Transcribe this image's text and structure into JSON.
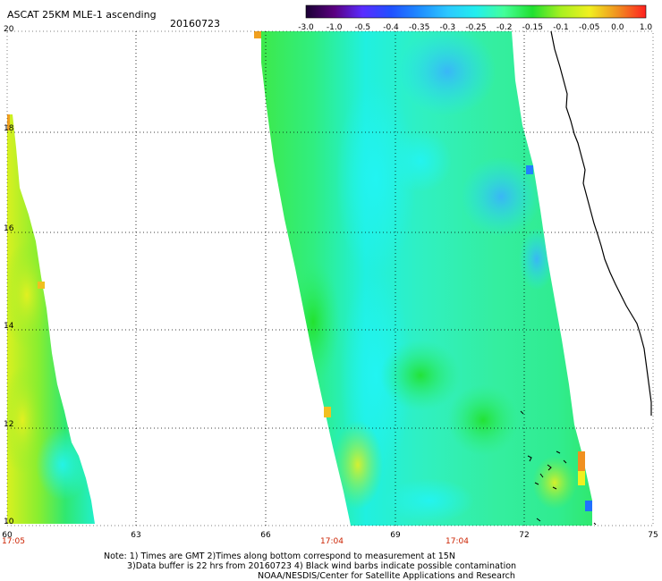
{
  "header": {
    "title": "ASCAT 25KM MLE-1 ascending",
    "date": "20160723"
  },
  "colorbar": {
    "labels": [
      "-3.0",
      "-1.0",
      "-0.5",
      "-0.4",
      "-0.35",
      "-0.3",
      "-0.25",
      "-0.2",
      "-0.15",
      "-0.1",
      "-0.05",
      "0.0",
      "1.0"
    ],
    "colors": [
      "#1a0033",
      "#5a0080",
      "#5a2cff",
      "#2050ff",
      "#1e8cff",
      "#2cc8ff",
      "#22eeee",
      "#44ff99",
      "#20e030",
      "#a8f020",
      "#f0f020",
      "#f09020",
      "#ff2020"
    ]
  },
  "axes": {
    "lat_labels": [
      "20",
      "18",
      "16",
      "14",
      "12",
      "10"
    ],
    "lon_labels": [
      "60",
      "63",
      "66",
      "69",
      "72",
      "75"
    ],
    "time_labels": [
      "17:05",
      "17:04",
      "17:04"
    ]
  },
  "notes": {
    "line1": "Note: 1) Times are GMT 2)Times along bottom correspond to measurement at 15N",
    "line2": "3)Data buffer is 22 hrs from 20160723 4) Black wind barbs indicate possible contamination",
    "line3": "NOAA/NESDIS/Center for Satellite Applications and Research"
  }
}
